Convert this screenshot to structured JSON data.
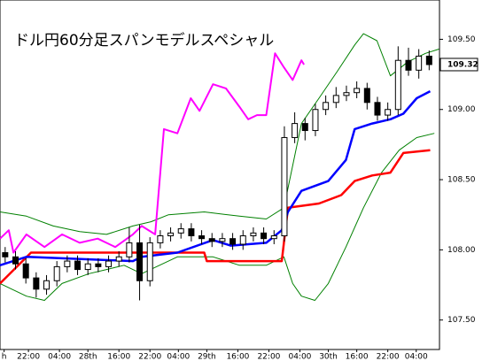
{
  "chart_data": {
    "type": "candlestick",
    "title": "ドル円60分足スパンモデルスペシャル",
    "xlim": [
      0,
      85
    ],
    "ylim": [
      107.29,
      109.78
    ],
    "yticks": [
      {
        "value": 107.5,
        "label": "107.50"
      },
      {
        "value": 108,
        "label": "108.00"
      },
      {
        "value": 108.5,
        "label": "108.50"
      },
      {
        "value": 109,
        "label": "109.00"
      },
      {
        "value": 109.5,
        "label": "109.50"
      }
    ],
    "xticks": [
      {
        "value": 0.8,
        "label": "h"
      },
      {
        "value": 5.5,
        "label": "22:00"
      },
      {
        "value": 11.5,
        "label": "04:00"
      },
      {
        "value": 17,
        "label": "28th"
      },
      {
        "value": 23,
        "label": "16:00"
      },
      {
        "value": 29,
        "label": "22:00"
      },
      {
        "value": 34.5,
        "label": "04:00"
      },
      {
        "value": 40,
        "label": "29th"
      },
      {
        "value": 46,
        "label": "16:00"
      },
      {
        "value": 52,
        "label": "22:00"
      },
      {
        "value": 58,
        "label": "04:00"
      },
      {
        "value": 63.5,
        "label": "30th"
      },
      {
        "value": 69,
        "label": "16:00"
      },
      {
        "value": 75,
        "label": "22:00"
      },
      {
        "value": 80.5,
        "label": "04:00"
      }
    ],
    "last_price": {
      "value": 109.32,
      "label": "109.32"
    },
    "candles": {
      "x": [
        1,
        3,
        5,
        7,
        9,
        11,
        13,
        15,
        17,
        19,
        21,
        23,
        25,
        27,
        29,
        31,
        33,
        35,
        37,
        39,
        41,
        43,
        45,
        47,
        49,
        51,
        53,
        55,
        57,
        59,
        61,
        63,
        65,
        67,
        69,
        71,
        73,
        75,
        77,
        79,
        81,
        83
      ],
      "open": [
        107.98,
        107.95,
        107.9,
        107.8,
        107.72,
        107.78,
        107.88,
        107.92,
        107.86,
        107.9,
        107.88,
        107.92,
        107.95,
        108.05,
        107.78,
        108.05,
        108.1,
        108.12,
        108.15,
        108.1,
        108.08,
        108.06,
        108.08,
        108.04,
        108.1,
        108.12,
        108.08,
        108.1,
        108.8,
        108.9,
        108.85,
        109.0,
        109.05,
        109.1,
        109.12,
        109.15,
        109.05,
        108.96,
        109.0,
        109.35,
        109.28,
        109.38
      ],
      "high": [
        108.02,
        107.99,
        107.94,
        107.84,
        107.82,
        107.92,
        107.96,
        107.96,
        107.94,
        107.94,
        107.96,
        107.99,
        108.16,
        108.18,
        108.09,
        108.14,
        108.16,
        108.19,
        108.19,
        108.14,
        108.12,
        108.12,
        108.12,
        108.14,
        108.16,
        108.16,
        108.14,
        108.88,
        108.98,
        108.94,
        109.04,
        109.1,
        109.16,
        109.17,
        109.2,
        109.19,
        109.09,
        109.05,
        109.45,
        109.44,
        109.43,
        109.42
      ],
      "low": [
        107.91,
        107.86,
        107.76,
        107.66,
        107.68,
        107.74,
        107.84,
        107.82,
        107.82,
        107.84,
        107.84,
        107.88,
        107.91,
        107.64,
        107.74,
        108.01,
        108.06,
        108.08,
        108.06,
        108.04,
        108.02,
        108.02,
        108.0,
        108.0,
        108.06,
        108.04,
        108.04,
        108.06,
        108.76,
        108.78,
        108.81,
        108.96,
        109.01,
        109.06,
        109.08,
        109.0,
        108.92,
        108.92,
        108.96,
        109.24,
        109.22,
        109.28
      ],
      "close": [
        107.95,
        107.9,
        107.8,
        107.72,
        107.78,
        107.88,
        107.92,
        107.86,
        107.9,
        107.88,
        107.92,
        107.95,
        108.05,
        107.78,
        108.05,
        108.1,
        108.12,
        108.15,
        108.1,
        108.08,
        108.06,
        108.08,
        108.04,
        108.1,
        108.12,
        108.08,
        108.1,
        108.8,
        108.9,
        108.85,
        109.0,
        109.05,
        109.1,
        109.12,
        109.15,
        109.05,
        108.96,
        109.0,
        109.35,
        109.28,
        109.38,
        109.32
      ],
      "up_color": "#ffffff",
      "down_color": "#000000",
      "edge_color": "#000000"
    },
    "series": [
      {
        "color": "#008000",
        "width": 1,
        "x": [
          0,
          5.1,
          10.3,
          15.4,
          20.6,
          25.7,
          29.2,
          32.6,
          39.5,
          46.3,
          51.5,
          54.9,
          58.3,
          61.7,
          65.2,
          68.6,
          70.3,
          72.9,
          75.5,
          78.9,
          82.3,
          84.9
        ],
        "values": [
          108.27,
          108.24,
          108.17,
          108.13,
          108.11,
          108.17,
          108.2,
          108.25,
          108.27,
          108.24,
          108.22,
          108.3,
          108.9,
          109.08,
          109.27,
          109.46,
          109.54,
          109.49,
          109.24,
          109.34,
          109.4,
          109.43
        ]
      },
      {
        "color": "#008000",
        "width": 1,
        "x": [
          0,
          5.1,
          8.6,
          12,
          17.2,
          20.6,
          24,
          27.4,
          34.3,
          41.2,
          46.3,
          51.5,
          54.9,
          56.6,
          58.3,
          60.9,
          63.5,
          66.9,
          70.3,
          73.8,
          77.2,
          80.6,
          84
        ],
        "values": [
          107.76,
          107.67,
          107.64,
          107.76,
          107.83,
          107.86,
          107.89,
          107.83,
          107.95,
          107.95,
          107.89,
          107.89,
          107.95,
          107.76,
          107.67,
          107.64,
          107.76,
          108.02,
          108.3,
          108.55,
          108.71,
          108.8,
          108.83
        ]
      },
      {
        "color": "#ff0000",
        "width": 2.5,
        "x": [
          0,
          6,
          39.5,
          40,
          54.5,
          55.7,
          61.7,
          66,
          68.6,
          72,
          75.5,
          78,
          83.2
        ],
        "values": [
          107.76,
          107.98,
          107.98,
          107.92,
          107.92,
          108.3,
          108.33,
          108.39,
          108.49,
          108.53,
          108.55,
          108.69,
          108.71
        ]
      },
      {
        "color": "#0000ff",
        "width": 2.5,
        "x": [
          0,
          5.1,
          25.7,
          27.4,
          34.3,
          41.2,
          44.6,
          51.5,
          54.5,
          55.7,
          58.3,
          63.5,
          66.9,
          68.6,
          72,
          75.5,
          78,
          80.6,
          83.2
        ],
        "values": [
          107.89,
          107.95,
          107.92,
          107.95,
          107.98,
          108.07,
          108.03,
          108.05,
          108.14,
          108.27,
          108.42,
          108.49,
          108.64,
          108.86,
          108.9,
          108.93,
          108.97,
          109.08,
          109.13
        ]
      },
      {
        "color": "#ff00ff",
        "width": 2,
        "x": [
          0,
          1.7,
          2.6,
          5.1,
          8.6,
          12,
          15.4,
          18.9,
          22.3,
          25.7,
          27.4,
          30,
          31.7,
          34.3,
          36.9,
          38.6,
          41.2,
          43.7,
          46.3,
          48,
          49.7,
          51.5,
          53.2,
          54.9,
          56.6,
          58.3,
          58.8
        ],
        "values": [
          108.08,
          108.14,
          107.98,
          108.11,
          108.02,
          108.11,
          108.05,
          108.08,
          108.02,
          108.11,
          108.17,
          108.11,
          108.86,
          108.83,
          109.08,
          108.99,
          109.18,
          109.15,
          109.02,
          108.93,
          108.96,
          108.96,
          109.4,
          109.3,
          109.21,
          109.35,
          109.32
        ]
      }
    ]
  }
}
